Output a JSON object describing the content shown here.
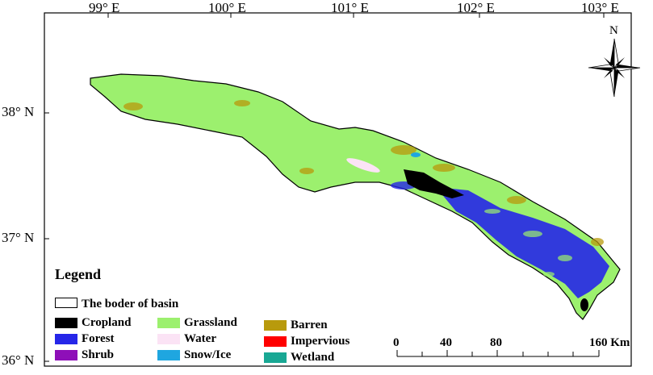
{
  "longitude_labels": [
    "99° E",
    "100° E",
    "101° E",
    "102° E",
    "103° E"
  ],
  "latitude_labels": [
    "38° N",
    "37° N",
    "36° N"
  ],
  "north_arrow": {
    "label": "N",
    "icon": "north-arrow-compass-icon"
  },
  "legend": {
    "title": "Legend",
    "border_label": "The boder of basin",
    "classes": [
      {
        "label": "Cropland",
        "color": "#000000"
      },
      {
        "label": "Forest",
        "color": "#2626e8"
      },
      {
        "label": "Shrub",
        "color": "#8e0fb8"
      },
      {
        "label": "Grassland",
        "color": "#9cf06e"
      },
      {
        "label": "Water",
        "color": "#fbe3f5"
      },
      {
        "label": "Snow/Ice",
        "color": "#1fa6e0"
      },
      {
        "label": "Barren",
        "color": "#b89a0c"
      },
      {
        "label": "Impervious",
        "color": "#ff0000"
      },
      {
        "label": "Wetland",
        "color": "#19a894"
      }
    ]
  },
  "scale_bar": {
    "ticks": [
      "0",
      "40",
      "80",
      "160 Km"
    ]
  },
  "colors": {
    "frame": "#000000",
    "basin_outline": "#000000"
  }
}
